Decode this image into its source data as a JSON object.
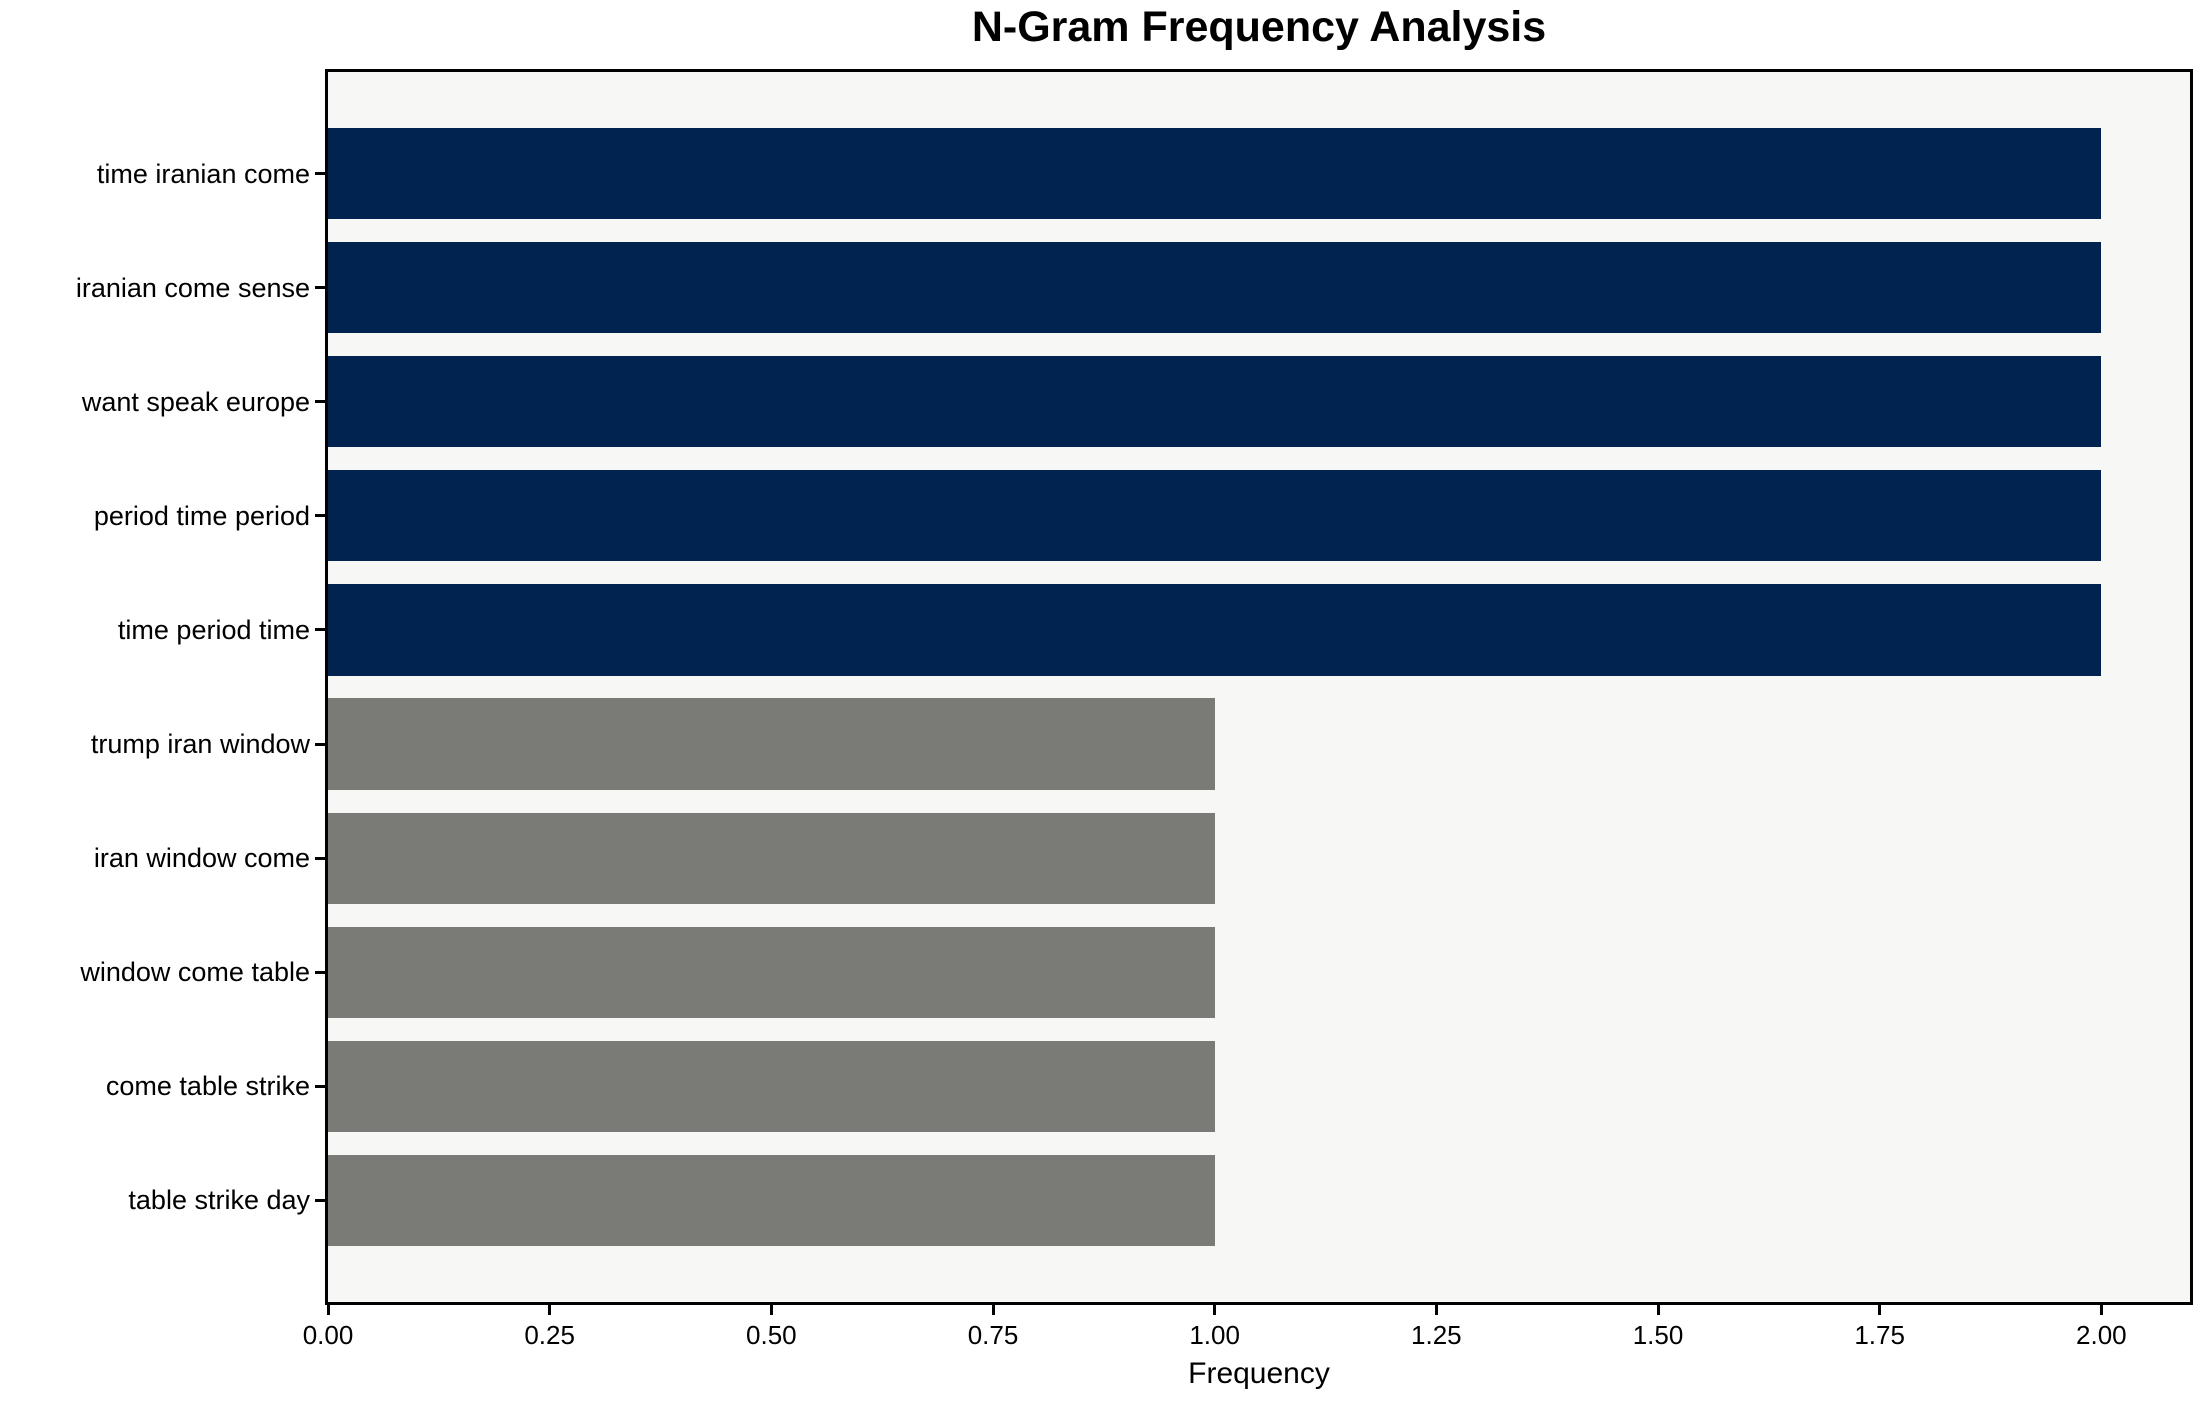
{
  "chart_data": {
    "type": "bar",
    "orientation": "horizontal",
    "title": "N-Gram Frequency Analysis",
    "xlabel": "Frequency",
    "ylabel": "",
    "categories": [
      "time iranian come",
      "iranian come sense",
      "want speak europe",
      "period time period",
      "time period time",
      "trump iran window",
      "iran window come",
      "window come table",
      "come table strike",
      "table strike day"
    ],
    "values": [
      2,
      2,
      2,
      2,
      2,
      1,
      1,
      1,
      1,
      1
    ],
    "bar_colors": [
      "#01234f",
      "#01234f",
      "#01234f",
      "#01234f",
      "#01234f",
      "#7a7a76",
      "#7a7a76",
      "#7a7a76",
      "#7a7a76",
      "#7a7a76"
    ],
    "xlim": [
      0,
      2.1
    ],
    "xticks": [
      0,
      0.25,
      0.5,
      0.75,
      1,
      1.25,
      1.5,
      1.75,
      2
    ],
    "xtick_labels": [
      "0.00",
      "0.25",
      "0.50",
      "0.75",
      "1.00",
      "1.25",
      "1.50",
      "1.75",
      "2.00"
    ],
    "grid": false,
    "legend_position": "none",
    "plot_background": "#f7f7f6",
    "figure_background": "#ffffff",
    "spine_color": "#000000",
    "navy_color": "#01234f",
    "gray_color": "#7a7a76"
  }
}
